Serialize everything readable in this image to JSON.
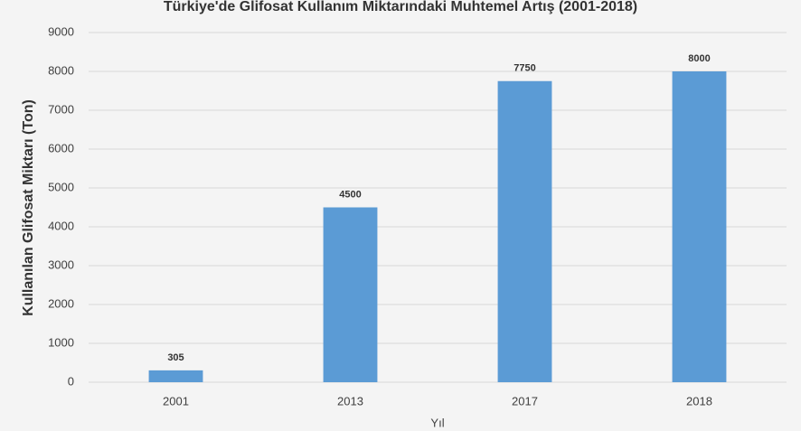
{
  "chart_data": {
    "type": "bar",
    "title": "Türkiye'de Glifosat Kullanım Miktarındaki Muhtemel Artış (2001-2018)",
    "x_label": "Yıl",
    "y_label": "Kullanılan Glifosat Miktarı (Ton)",
    "categories": [
      "2001",
      "2013",
      "2017",
      "2018"
    ],
    "values": [
      305,
      4500,
      7750,
      8000
    ],
    "color": "#5b9bd5",
    "ylim": [
      0,
      9000
    ],
    "yticks": [
      0,
      1000,
      2000,
      3000,
      4000,
      5000,
      6000,
      7000,
      8000,
      9000
    ],
    "grid": true
  }
}
